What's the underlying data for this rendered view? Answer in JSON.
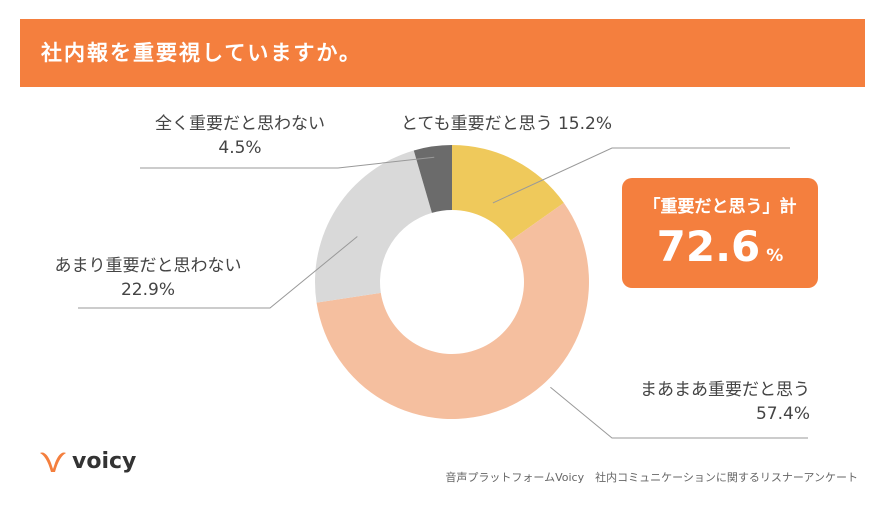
{
  "header": {
    "title": "社内報を重要視していますか。"
  },
  "colors": {
    "accent": "#f47f3e",
    "slice_very": "#efc95b",
    "slice_somewhat": "#f5bf9f",
    "slice_notvery": "#d9d9d9",
    "slice_notatall": "#6b6b6b",
    "leader": "#999999"
  },
  "chart_data": {
    "type": "pie",
    "donut": true,
    "title": "",
    "slices": [
      {
        "label": "とても重要だと思う",
        "value": 15.2,
        "value_label": "15.2%",
        "color": "#efc95b"
      },
      {
        "label": "まあまあ重要だと思う",
        "value": 57.4,
        "value_label": "57.4%",
        "color": "#f5bf9f"
      },
      {
        "label": "あまり重要だと思わない",
        "value": 22.9,
        "value_label": "22.9%",
        "color": "#d9d9d9"
      },
      {
        "label": "全く重要だと思わない",
        "value": 4.5,
        "value_label": "4.5%",
        "color": "#6b6b6b"
      }
    ]
  },
  "total": {
    "label": "「重要だと思う」計",
    "value": "72.6",
    "unit": "%"
  },
  "logo": {
    "text": "voicy",
    "icon": "voicy-v-icon"
  },
  "source": "音声プラットフォームVoicy　社内コミュニケーションに関するリスナーアンケート"
}
